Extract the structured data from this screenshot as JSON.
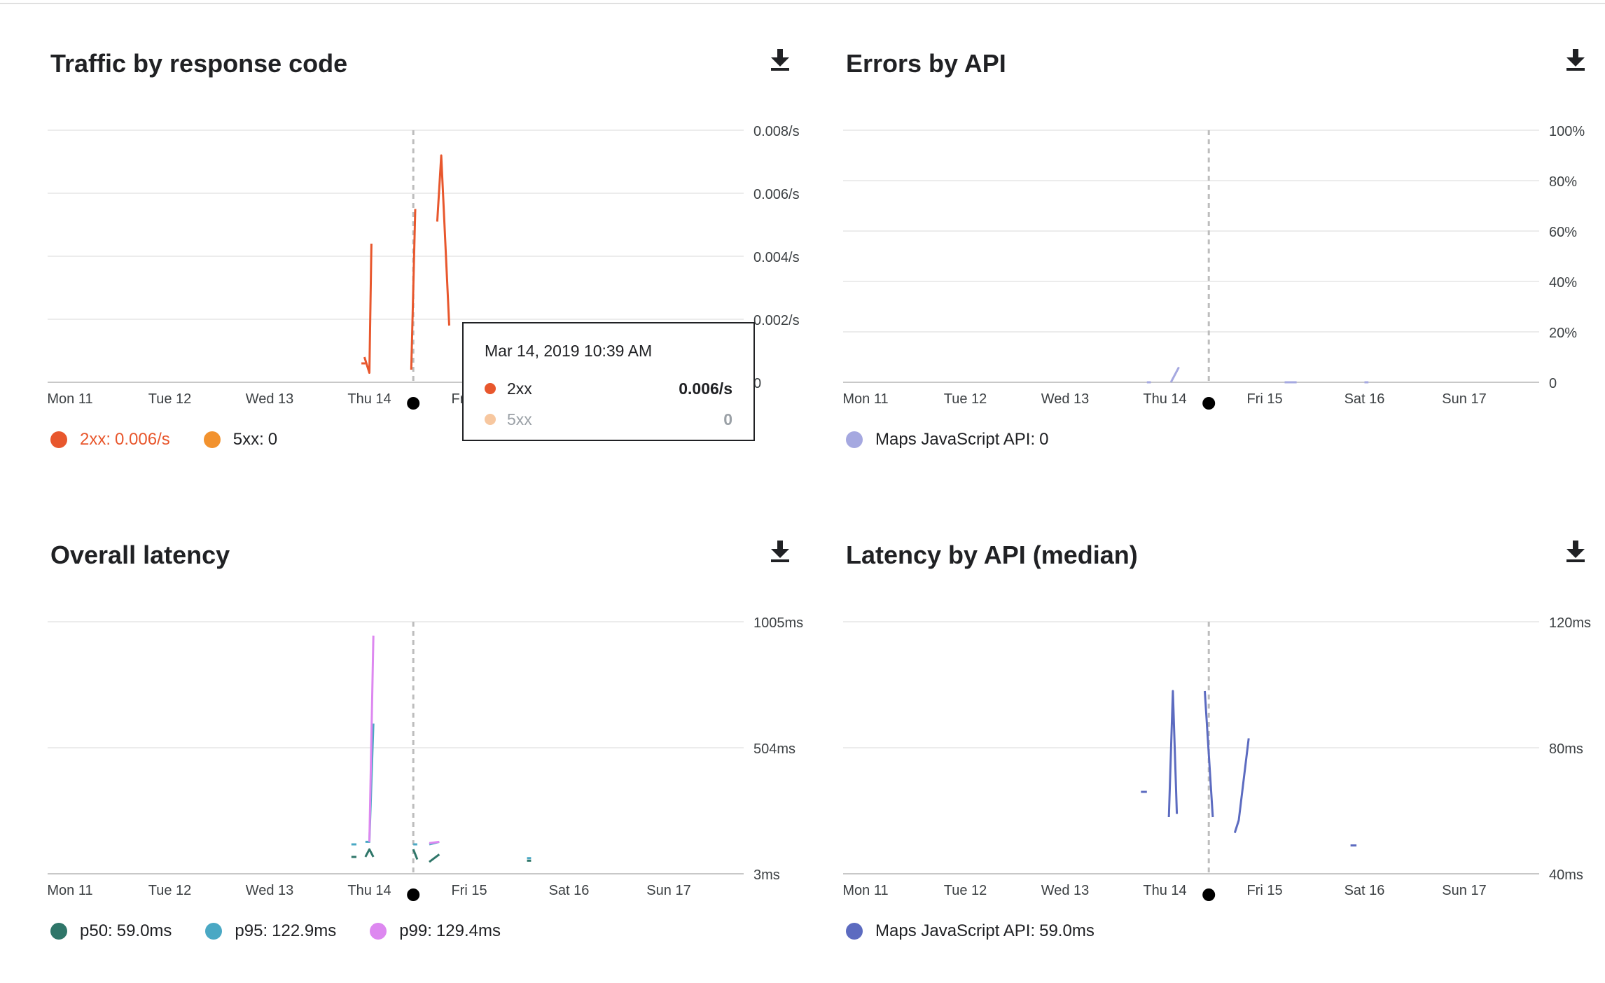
{
  "charts": [
    {
      "title": "Traffic by response code",
      "y_ticks": [
        "0.008/s",
        "0.006/s",
        "0.004/s",
        "0.002/s",
        "0"
      ],
      "x_ticks": [
        "Mon 11",
        "Tue 12",
        "Wed 13",
        "Thu 14",
        "Fri 15",
        "Sat 16",
        "Sun 17"
      ],
      "legend": [
        {
          "label": "2xx",
          "value": "0.006/s",
          "color": "#e8572d"
        },
        {
          "label": "5xx",
          "value": "0",
          "color": "#f2922e"
        }
      ],
      "tooltip": {
        "date": "Mar 14, 2019 10:39 AM",
        "rows": [
          {
            "label": "2xx",
            "value": "0.006/s",
            "color": "#e8572d"
          },
          {
            "label": "5xx",
            "value": "0",
            "color": "#f7c79f"
          }
        ]
      }
    },
    {
      "title": "Errors by API",
      "y_ticks": [
        "100%",
        "80%",
        "60%",
        "40%",
        "20%",
        "0"
      ],
      "x_ticks": [
        "Mon 11",
        "Tue 12",
        "Wed 13",
        "Thu 14",
        "Fri 15",
        "Sat 16",
        "Sun 17"
      ],
      "legend": [
        {
          "label": "Maps JavaScript API",
          "value": "0",
          "color": "#a5a8e0"
        }
      ]
    },
    {
      "title": "Overall latency",
      "y_ticks": [
        "1005ms",
        "504ms",
        "3ms"
      ],
      "x_ticks": [
        "Mon 11",
        "Tue 12",
        "Wed 13",
        "Thu 14",
        "Fri 15",
        "Sat 16",
        "Sun 17"
      ],
      "legend": [
        {
          "label": "p50",
          "value": "59.0ms",
          "color": "#2f7669"
        },
        {
          "label": "p95",
          "value": "122.9ms",
          "color": "#4aa8c4"
        },
        {
          "label": "p99",
          "value": "129.4ms",
          "color": "#dd88f0"
        }
      ]
    },
    {
      "title": "Latency by API (median)",
      "y_ticks": [
        "120ms",
        "80ms",
        "40ms"
      ],
      "x_ticks": [
        "Mon 11",
        "Tue 12",
        "Wed 13",
        "Thu 14",
        "Fri 15",
        "Sat 16",
        "Sun 17"
      ],
      "legend": [
        {
          "label": "Maps JavaScript API",
          "value": "59.0ms",
          "color": "#5c6bc0"
        }
      ]
    }
  ],
  "chart_data": [
    {
      "type": "line",
      "title": "Traffic by response code",
      "ylim": [
        0,
        0.008
      ],
      "x_range": [
        "Mon 11",
        "Sun 17"
      ],
      "grid": true,
      "legend_position": "bottom-left",
      "series": [
        {
          "name": "2xx",
          "color": "#e8572d",
          "segments": [
            [
              [
                2.92,
                0.0006
              ],
              [
                2.96,
                0.0006
              ]
            ],
            [
              [
                2.95,
                0.0008
              ],
              [
                3.0,
                0.0003
              ],
              [
                3.02,
                0.0044
              ]
            ],
            [
              [
                3.42,
                0.0004
              ],
              [
                3.46,
                0.0055
              ]
            ],
            [
              [
                3.68,
                0.0051
              ],
              [
                3.72,
                0.0072
              ],
              [
                3.8,
                0.0018
              ]
            ]
          ]
        },
        {
          "name": "5xx",
          "color": "#f2922e",
          "segments": []
        }
      ],
      "cursor_x": 3.44
    },
    {
      "type": "line",
      "title": "Errors by API",
      "ylim": [
        0,
        100
      ],
      "x_range": [
        "Mon 11",
        "Sun 17"
      ],
      "grid": true,
      "legend_position": "bottom-left",
      "series": [
        {
          "name": "Maps JavaScript API",
          "color": "#a5a8e0",
          "segments": [
            [
              [
                2.82,
                0
              ],
              [
                2.86,
                0
              ]
            ],
            [
              [
                3.06,
                0
              ],
              [
                3.14,
                6
              ]
            ],
            [
              [
                4.2,
                0
              ],
              [
                4.32,
                0
              ]
            ],
            [
              [
                5.0,
                0
              ],
              [
                5.04,
                0
              ]
            ]
          ]
        }
      ],
      "cursor_x": 3.44
    },
    {
      "type": "line",
      "title": "Overall latency",
      "ylim": [
        3,
        1005
      ],
      "x_range": [
        "Mon 11",
        "Sun 17"
      ],
      "grid": true,
      "legend_position": "bottom-left",
      "series": [
        {
          "name": "p50",
          "color": "#2f7669",
          "segments": [
            [
              [
                2.82,
                70
              ],
              [
                2.87,
                70
              ]
            ],
            [
              [
                2.96,
                70
              ],
              [
                3.0,
                100
              ],
              [
                3.04,
                70
              ]
            ],
            [
              [
                3.44,
                100
              ],
              [
                3.48,
                60
              ]
            ],
            [
              [
                3.6,
                50
              ],
              [
                3.7,
                80
              ]
            ],
            [
              [
                4.58,
                55
              ],
              [
                4.62,
                55
              ]
            ]
          ]
        },
        {
          "name": "p95",
          "color": "#4aa8c4",
          "segments": [
            [
              [
                2.82,
                120
              ],
              [
                2.87,
                120
              ]
            ],
            [
              [
                2.96,
                130
              ],
              [
                3.0,
                130
              ],
              [
                3.04,
                600
              ]
            ],
            [
              [
                3.44,
                120
              ],
              [
                3.48,
                120
              ]
            ],
            [
              [
                3.6,
                120
              ],
              [
                3.7,
                130
              ]
            ],
            [
              [
                4.58,
                65
              ],
              [
                4.62,
                65
              ]
            ]
          ]
        },
        {
          "name": "p99",
          "color": "#dd88f0",
          "segments": [
            [
              [
                3.0,
                130
              ],
              [
                3.04,
                950
              ]
            ],
            [
              [
                3.6,
                125
              ],
              [
                3.7,
                130
              ]
            ]
          ]
        }
      ],
      "cursor_x": 3.44
    },
    {
      "type": "line",
      "title": "Latency by API (median)",
      "ylim": [
        40,
        120
      ],
      "x_range": [
        "Mon 11",
        "Sun 17"
      ],
      "grid": true,
      "legend_position": "bottom-left",
      "series": [
        {
          "name": "Maps JavaScript API",
          "color": "#5c6bc0",
          "segments": [
            [
              [
                2.76,
                66
              ],
              [
                2.82,
                66
              ]
            ],
            [
              [
                3.04,
                58
              ],
              [
                3.08,
                98
              ],
              [
                3.12,
                59
              ]
            ],
            [
              [
                3.4,
                98
              ],
              [
                3.48,
                58
              ]
            ],
            [
              [
                3.7,
                53
              ],
              [
                3.74,
                57
              ],
              [
                3.84,
                83
              ]
            ],
            [
              [
                4.86,
                49
              ],
              [
                4.92,
                49
              ]
            ]
          ]
        }
      ],
      "cursor_x": 3.44
    }
  ]
}
